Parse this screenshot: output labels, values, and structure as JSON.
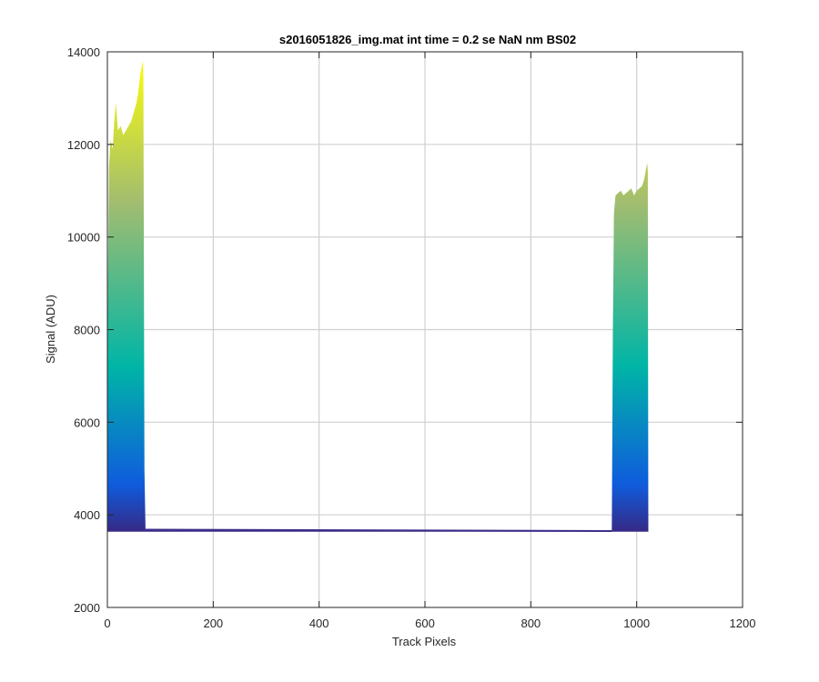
{
  "chart_data": {
    "type": "area",
    "title": "s2016051826_img.mat int time = 0.2 se  NaN nm BS02",
    "xlabel": "Track Pixels",
    "ylabel": "Signal (ADU)",
    "xlim": [
      0,
      1200
    ],
    "ylim": [
      2000,
      14000
    ],
    "xticks": [
      0,
      200,
      400,
      600,
      800,
      1000,
      1200
    ],
    "yticks": [
      2000,
      4000,
      6000,
      8000,
      10000,
      12000,
      14000
    ],
    "xtick_labels": [
      "0",
      "200",
      "400",
      "600",
      "800",
      "1000",
      "1200"
    ],
    "ytick_labels": [
      "2000",
      "4000",
      "6000",
      "8000",
      "10000",
      "12000",
      "14000"
    ],
    "grid": true,
    "colormap": "parula",
    "baseline": 3650,
    "regions": [
      {
        "x": [
          0,
          1,
          3,
          6,
          10,
          13,
          16,
          20,
          25,
          30,
          35,
          40,
          45,
          50,
          55,
          58,
          62,
          65,
          67,
          68,
          70,
          72
        ],
        "upper": [
          3650,
          9000,
          11500,
          12100,
          11900,
          12500,
          12900,
          12300,
          12400,
          12200,
          12300,
          12400,
          12500,
          12700,
          12900,
          13100,
          13500,
          13700,
          13800,
          13500,
          5000,
          3700
        ]
      },
      {
        "x": [
          953,
          955,
          957,
          960,
          965,
          970,
          975,
          980,
          985,
          990,
          995,
          1000,
          1005,
          1010,
          1013,
          1015,
          1018,
          1020,
          1021,
          1022
        ],
        "upper": [
          3700,
          8000,
          10500,
          10900,
          10950,
          11000,
          10900,
          10950,
          11000,
          11050,
          10900,
          11000,
          11050,
          11100,
          11200,
          11300,
          11500,
          11600,
          11400,
          3650
        ]
      }
    ],
    "flat_segment": {
      "x": [
        72,
        953
      ],
      "y": [
        3680,
        3650
      ]
    }
  },
  "colors": {
    "low": "#352a87",
    "mid_low": "#0f5cdd",
    "mid": "#00b5a6",
    "mid_high": "#a2bd6f",
    "high": "#f9fb0e",
    "baseline_line": "#3b2e8a",
    "grid": "#d0d0d0",
    "axis": "#262626"
  }
}
